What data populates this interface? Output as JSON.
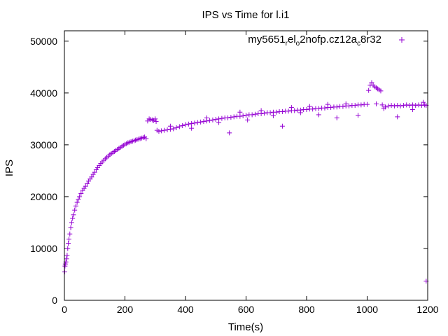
{
  "chart_data": {
    "type": "scatter",
    "title": "IPS vs Time for l.i1",
    "xlabel": "Time(s)",
    "ylabel": "IPS",
    "xlim": [
      0,
      1200
    ],
    "ylim": [
      0,
      52000
    ],
    "xticks": [
      "0",
      "200",
      "400",
      "600",
      "800",
      "1000",
      "1200"
    ],
    "yticks": [
      "0",
      "10000",
      "20000",
      "30000",
      "40000",
      "50000"
    ],
    "grid": false,
    "legend_position": "top-right",
    "series": [
      {
        "legend": {
          "base": "my5651",
          "sub1": "r",
          "mid1": "el",
          "sub2": "o",
          "mid2": "2nofp.cz12a",
          "sub3": "c",
          "tail": "8r32"
        },
        "color": "#9400d3",
        "marker": "plus",
        "points": [
          [
            1,
            5500
          ],
          [
            2,
            6600
          ],
          [
            3,
            7000
          ],
          [
            5,
            7400
          ],
          [
            7,
            8000
          ],
          [
            9,
            8700
          ],
          [
            11,
            10000
          ],
          [
            13,
            11000
          ],
          [
            15,
            11800
          ],
          [
            18,
            12800
          ],
          [
            21,
            14000
          ],
          [
            24,
            15000
          ],
          [
            27,
            15800
          ],
          [
            30,
            16500
          ],
          [
            34,
            17400
          ],
          [
            38,
            18200
          ],
          [
            42,
            18900
          ],
          [
            46,
            19500
          ],
          [
            50,
            20000
          ],
          [
            55,
            20600
          ],
          [
            60,
            21200
          ],
          [
            65,
            21600
          ],
          [
            70,
            22000
          ],
          [
            75,
            22500
          ],
          [
            80,
            23000
          ],
          [
            85,
            23400
          ],
          [
            90,
            23800
          ],
          [
            95,
            24300
          ],
          [
            100,
            24700
          ],
          [
            105,
            25200
          ],
          [
            110,
            25600
          ],
          [
            115,
            26000
          ],
          [
            120,
            26400
          ],
          [
            125,
            26700
          ],
          [
            130,
            27000
          ],
          [
            135,
            27300
          ],
          [
            140,
            27600
          ],
          [
            145,
            27800
          ],
          [
            150,
            28100
          ],
          [
            155,
            28300
          ],
          [
            160,
            28500
          ],
          [
            165,
            28700
          ],
          [
            170,
            28900
          ],
          [
            175,
            29100
          ],
          [
            180,
            29300
          ],
          [
            185,
            29500
          ],
          [
            190,
            29700
          ],
          [
            195,
            29900
          ],
          [
            200,
            30100
          ],
          [
            205,
            30200
          ],
          [
            210,
            30400
          ],
          [
            215,
            30500
          ],
          [
            220,
            30600
          ],
          [
            225,
            30700
          ],
          [
            230,
            30800
          ],
          [
            235,
            30900
          ],
          [
            240,
            31000
          ],
          [
            245,
            31100
          ],
          [
            250,
            31200
          ],
          [
            255,
            31300
          ],
          [
            260,
            31400
          ],
          [
            265,
            31500
          ],
          [
            270,
            31200
          ],
          [
            275,
            34600
          ],
          [
            280,
            35000
          ],
          [
            285,
            34900
          ],
          [
            290,
            34800
          ],
          [
            295,
            34700
          ],
          [
            300,
            35000
          ],
          [
            303,
            34500
          ],
          [
            306,
            32800
          ],
          [
            312,
            32600
          ],
          [
            320,
            32700
          ],
          [
            330,
            32800
          ],
          [
            340,
            32900
          ],
          [
            350,
            33000
          ],
          [
            360,
            33100
          ],
          [
            370,
            33300
          ],
          [
            380,
            33500
          ],
          [
            390,
            33700
          ],
          [
            400,
            33900
          ],
          [
            410,
            34000
          ],
          [
            420,
            34100
          ],
          [
            430,
            34200
          ],
          [
            440,
            34300
          ],
          [
            450,
            34400
          ],
          [
            460,
            34500
          ],
          [
            470,
            34600
          ],
          [
            480,
            34700
          ],
          [
            490,
            34800
          ],
          [
            500,
            34900
          ],
          [
            510,
            35000
          ],
          [
            520,
            35100
          ],
          [
            530,
            35200
          ],
          [
            540,
            35200
          ],
          [
            550,
            35300
          ],
          [
            560,
            35400
          ],
          [
            570,
            35500
          ],
          [
            580,
            35500
          ],
          [
            590,
            35600
          ],
          [
            600,
            35700
          ],
          [
            610,
            35800
          ],
          [
            620,
            35800
          ],
          [
            630,
            35900
          ],
          [
            640,
            36000
          ],
          [
            650,
            36000
          ],
          [
            660,
            36100
          ],
          [
            670,
            36200
          ],
          [
            680,
            36200
          ],
          [
            690,
            36300
          ],
          [
            700,
            36300
          ],
          [
            710,
            36400
          ],
          [
            720,
            36400
          ],
          [
            730,
            36500
          ],
          [
            740,
            36500
          ],
          [
            750,
            36600
          ],
          [
            760,
            36600
          ],
          [
            770,
            36700
          ],
          [
            780,
            36700
          ],
          [
            790,
            36800
          ],
          [
            800,
            36800
          ],
          [
            810,
            36900
          ],
          [
            820,
            36900
          ],
          [
            830,
            37000
          ],
          [
            840,
            37000
          ],
          [
            850,
            37100
          ],
          [
            860,
            37100
          ],
          [
            870,
            37200
          ],
          [
            880,
            37200
          ],
          [
            890,
            37300
          ],
          [
            900,
            37300
          ],
          [
            910,
            37400
          ],
          [
            920,
            37400
          ],
          [
            930,
            37500
          ],
          [
            940,
            37500
          ],
          [
            950,
            37600
          ],
          [
            960,
            37600
          ],
          [
            970,
            37700
          ],
          [
            980,
            37700
          ],
          [
            990,
            37800
          ],
          [
            1000,
            37800
          ],
          [
            1005,
            40500
          ],
          [
            1010,
            41500
          ],
          [
            1015,
            42000
          ],
          [
            1020,
            41500
          ],
          [
            1025,
            41200
          ],
          [
            1030,
            41000
          ],
          [
            1035,
            40800
          ],
          [
            1040,
            40600
          ],
          [
            1045,
            40400
          ],
          [
            1050,
            37700
          ],
          [
            1055,
            37000
          ],
          [
            1060,
            37300
          ],
          [
            1070,
            37500
          ],
          [
            1080,
            37600
          ],
          [
            1090,
            37500
          ],
          [
            1100,
            37600
          ],
          [
            1110,
            37500
          ],
          [
            1120,
            37600
          ],
          [
            1130,
            37700
          ],
          [
            1140,
            37600
          ],
          [
            1150,
            37700
          ],
          [
            1160,
            37600
          ],
          [
            1170,
            37700
          ],
          [
            1180,
            37600
          ],
          [
            1190,
            37700
          ],
          [
            1195,
            37600
          ],
          [
            350,
            33600
          ],
          [
            420,
            33200
          ],
          [
            470,
            35200
          ],
          [
            510,
            34300
          ],
          [
            545,
            32300
          ],
          [
            580,
            36300
          ],
          [
            605,
            34800
          ],
          [
            650,
            36600
          ],
          [
            690,
            35600
          ],
          [
            720,
            33600
          ],
          [
            750,
            37200
          ],
          [
            780,
            36200
          ],
          [
            810,
            37400
          ],
          [
            840,
            35800
          ],
          [
            870,
            37800
          ],
          [
            900,
            35200
          ],
          [
            930,
            37900
          ],
          [
            970,
            35700
          ],
          [
            1030,
            37900
          ],
          [
            1100,
            35400
          ],
          [
            1150,
            36800
          ],
          [
            1185,
            38200
          ],
          [
            1195,
            3700
          ]
        ]
      }
    ]
  }
}
